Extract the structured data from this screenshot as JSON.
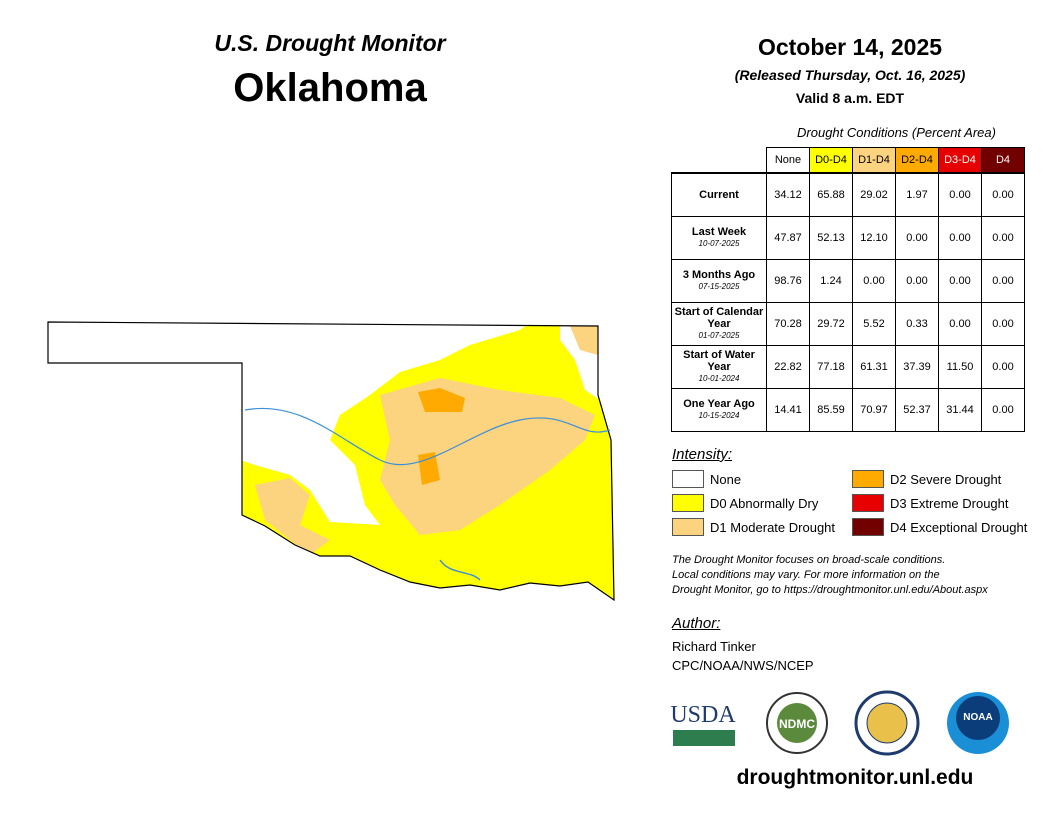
{
  "header": {
    "subtitle": "U.S. Drought Monitor",
    "title": "Oklahoma",
    "date": "October 14, 2025",
    "released": "(Released Thursday, Oct. 16, 2025)",
    "valid": "Valid 8 a.m. EDT"
  },
  "table": {
    "caption": "Drought Conditions (Percent Area)",
    "columns": [
      "None",
      "D0-D4",
      "D1-D4",
      "D2-D4",
      "D3-D4",
      "D4"
    ],
    "rows": [
      {
        "label": "Current",
        "values": [
          "34.12",
          "65.88",
          "29.02",
          "1.97",
          "0.00",
          "0.00"
        ]
      },
      {
        "label": "Last Week",
        "date": "10-07-2025",
        "values": [
          "47.87",
          "52.13",
          "12.10",
          "0.00",
          "0.00",
          "0.00"
        ]
      },
      {
        "label": "3 Months Ago",
        "date": "07-15-2025",
        "values": [
          "98.76",
          "1.24",
          "0.00",
          "0.00",
          "0.00",
          "0.00"
        ]
      },
      {
        "label": "Start of Calendar Year",
        "date": "01-07-2025",
        "values": [
          "70.28",
          "29.72",
          "5.52",
          "0.33",
          "0.00",
          "0.00"
        ]
      },
      {
        "label": "Start of Water Year",
        "date": "10-01-2024",
        "values": [
          "22.82",
          "77.18",
          "61.31",
          "37.39",
          "11.50",
          "0.00"
        ]
      },
      {
        "label": "One Year Ago",
        "date": "10-15-2024",
        "values": [
          "14.41",
          "85.59",
          "70.97",
          "52.37",
          "31.44",
          "0.00"
        ]
      }
    ]
  },
  "legend": {
    "title": "Intensity:",
    "items": [
      "None",
      "D0 Abnormally Dry",
      "D1 Moderate Drought",
      "D2 Severe Drought",
      "D3 Extreme Drought",
      "D4 Exceptional Drought"
    ]
  },
  "note": [
    "The Drought Monitor focuses on broad-scale conditions.",
    "Local conditions may vary. For more information on the",
    "Drought Monitor, go to https://droughtmonitor.unl.edu/About.aspx"
  ],
  "author": {
    "title": "Author:",
    "lines": [
      "Richard Tinker",
      "CPC/NOAA/NWS/NCEP"
    ]
  },
  "logos": [
    "USDA",
    "NDMC",
    "NOAA"
  ],
  "footer": "droughtmonitor.unl.edu"
}
